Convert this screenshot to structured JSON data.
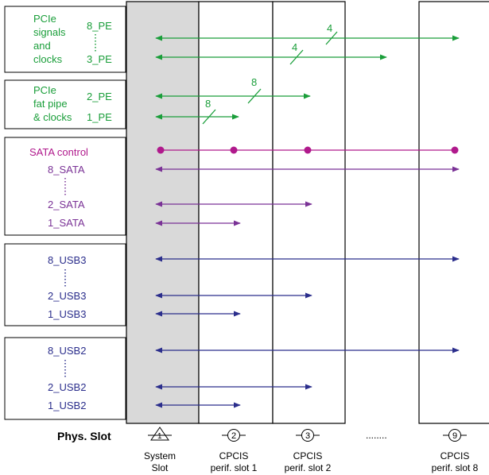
{
  "colors": {
    "green": "#1a9e3a",
    "magenta": "#b0198c",
    "purple": "#7a3296",
    "navy": "#2b2e8c",
    "black": "#000000",
    "slot_fill": "#d9d9d9"
  },
  "groups": {
    "pcie_signals": {
      "label_lines": [
        "PCIe",
        "signals",
        "and",
        "clocks"
      ],
      "upper": "8_PE",
      "lower": "3_PE",
      "width_upper": "4",
      "width_lower": "4"
    },
    "pcie_fatpipe": {
      "label_lines": [
        "PCIe",
        "fat pipe",
        "& clocks"
      ],
      "upper": "2_PE",
      "lower": "1_PE",
      "width_upper": "8",
      "width_lower": "8"
    },
    "sata": {
      "control": "SATA control",
      "top": "8_SATA",
      "mid": "2_SATA",
      "bottom": "1_SATA"
    },
    "usb3": {
      "top": "8_USB3",
      "mid": "2_USB3",
      "bottom": "1_USB3"
    },
    "usb2": {
      "top": "8_USB2",
      "mid": "2_USB2",
      "bottom": "1_USB2"
    }
  },
  "footer": {
    "phys_slot": "Phys. Slot",
    "ellipsis": "........",
    "slots": [
      {
        "number": "1",
        "line1": "System",
        "line2": "Slot",
        "icon": "triangle-slot-icon"
      },
      {
        "number": "2",
        "line1": "CPCIS",
        "line2": "perif. slot 1",
        "icon": "circle-slot-icon"
      },
      {
        "number": "3",
        "line1": "CPCIS",
        "line2": "perif. slot 2",
        "icon": "circle-slot-icon"
      },
      {
        "number": "9",
        "line1": "CPCIS",
        "line2": "perif. slot 8",
        "icon": "circle-slot-icon"
      }
    ]
  }
}
